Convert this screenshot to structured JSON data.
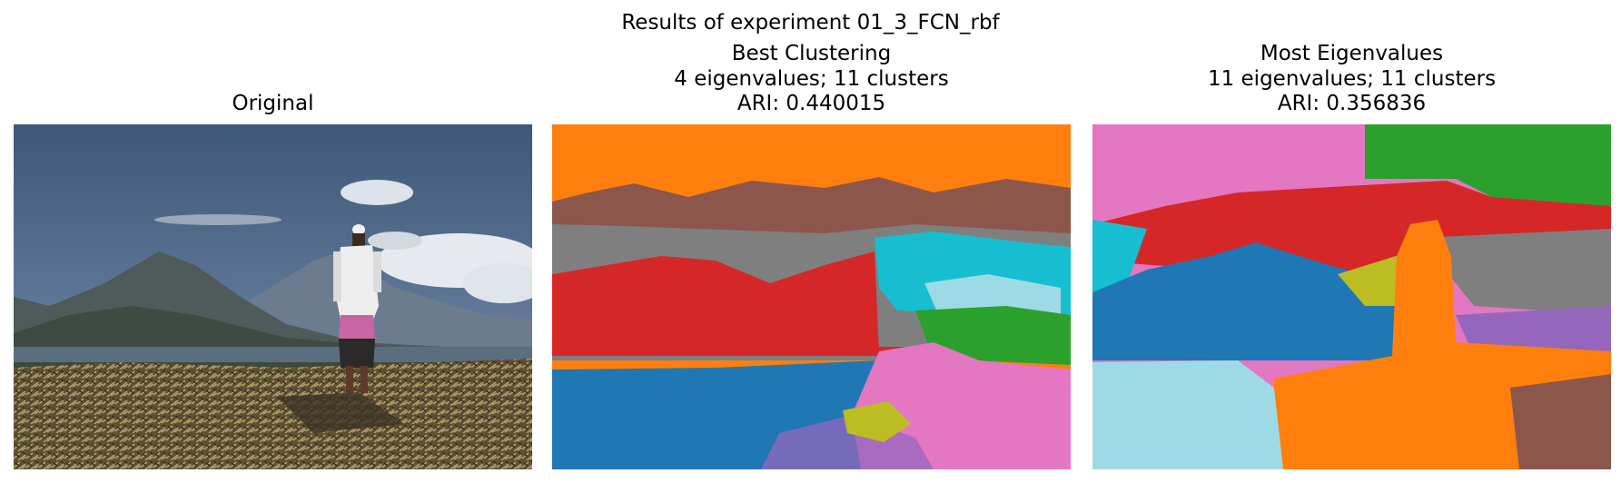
{
  "figure": {
    "suptitle": "Results of experiment 01_3_FCN_rbf"
  },
  "panels": [
    {
      "id": "original",
      "title_lines": [
        "Original"
      ],
      "image_description_icon": "photo-man-on-hillside"
    },
    {
      "id": "best",
      "title_lines": [
        "Best Clustering",
        "4 eigenvalues; 11 clusters",
        "ARI: 0.440015"
      ]
    },
    {
      "id": "most",
      "title_lines": [
        "Most Eigenvalues",
        "11 eigenvalues; 11 clusters",
        "ARI: 0.356836"
      ]
    }
  ],
  "palette": {
    "blue": "#1f77b4",
    "orange": "#ff7f0e",
    "green": "#2ca02c",
    "red": "#d62728",
    "purple": "#9467bd",
    "brown": "#8c564b",
    "pink": "#e377c2",
    "gray": "#7f7f7f",
    "olive": "#bcbd22",
    "cyan": "#17becf",
    "lightcyan": "#9edae5"
  }
}
